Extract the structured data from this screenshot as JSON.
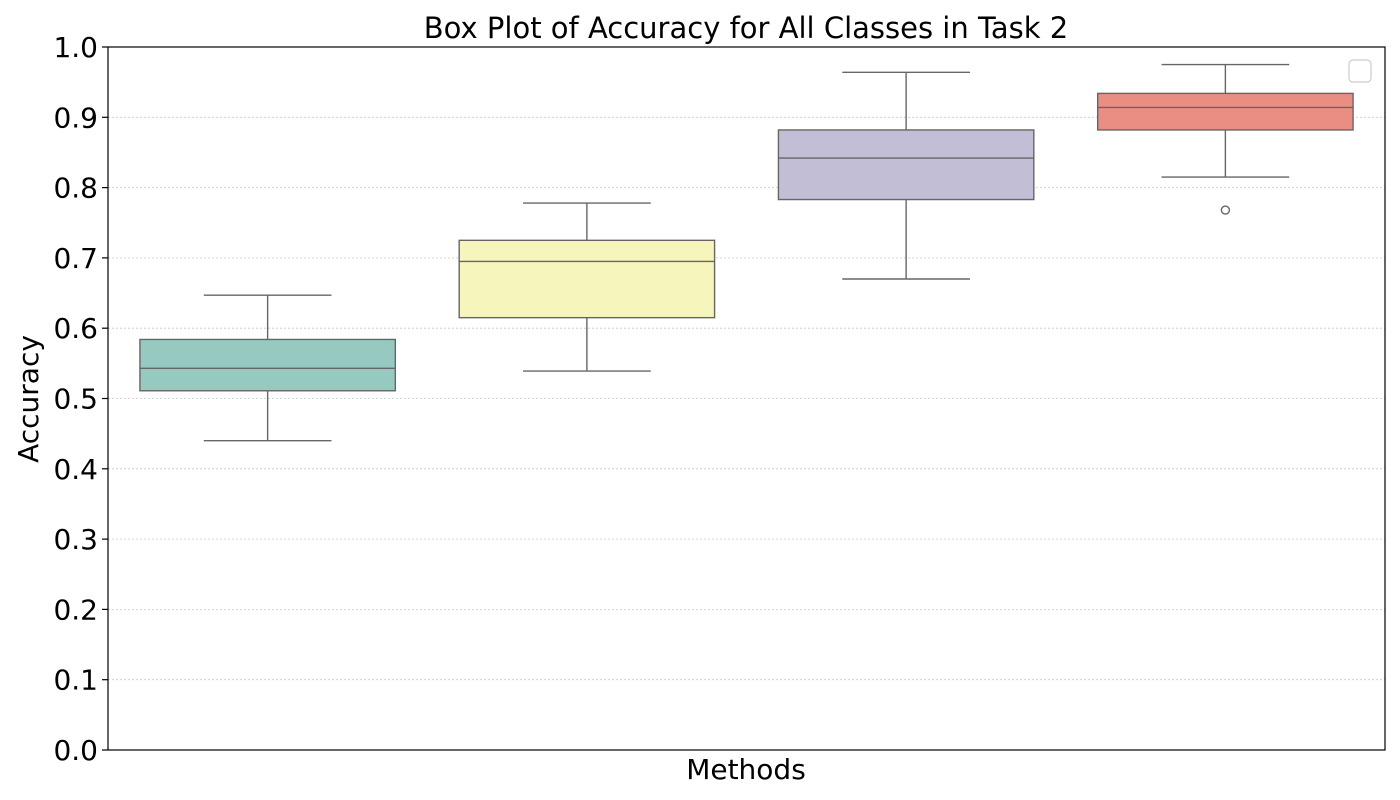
{
  "chart_data": {
    "type": "box",
    "title": "Box Plot of Accuracy for All Classes in Task 2",
    "xlabel": "Methods",
    "ylabel": "Accuracy",
    "ylim": [
      0,
      1
    ],
    "yticks": [
      "0.0",
      "0.1",
      "0.2",
      "0.3",
      "0.4",
      "0.5",
      "0.6",
      "0.7",
      "0.8",
      "0.9",
      "1.0"
    ],
    "grid": "y",
    "legend": "top-right",
    "boxes": [
      {
        "color": "#96cac1",
        "whisker_low": 0.44,
        "q1": 0.511,
        "median": 0.543,
        "q3": 0.584,
        "whisker_high": 0.647,
        "outliers": []
      },
      {
        "color": "#f6f6bc",
        "whisker_low": 0.539,
        "q1": 0.615,
        "median": 0.695,
        "q3": 0.725,
        "whisker_high": 0.778,
        "outliers": []
      },
      {
        "color": "#c1bed6",
        "whisker_low": 0.67,
        "q1": 0.783,
        "median": 0.842,
        "q3": 0.882,
        "whisker_high": 0.964,
        "outliers": []
      },
      {
        "color": "#ea8e83",
        "whisker_low": 0.815,
        "q1": 0.882,
        "median": 0.914,
        "q3": 0.934,
        "whisker_high": 0.975,
        "outliers": [
          0.768
        ]
      }
    ]
  }
}
